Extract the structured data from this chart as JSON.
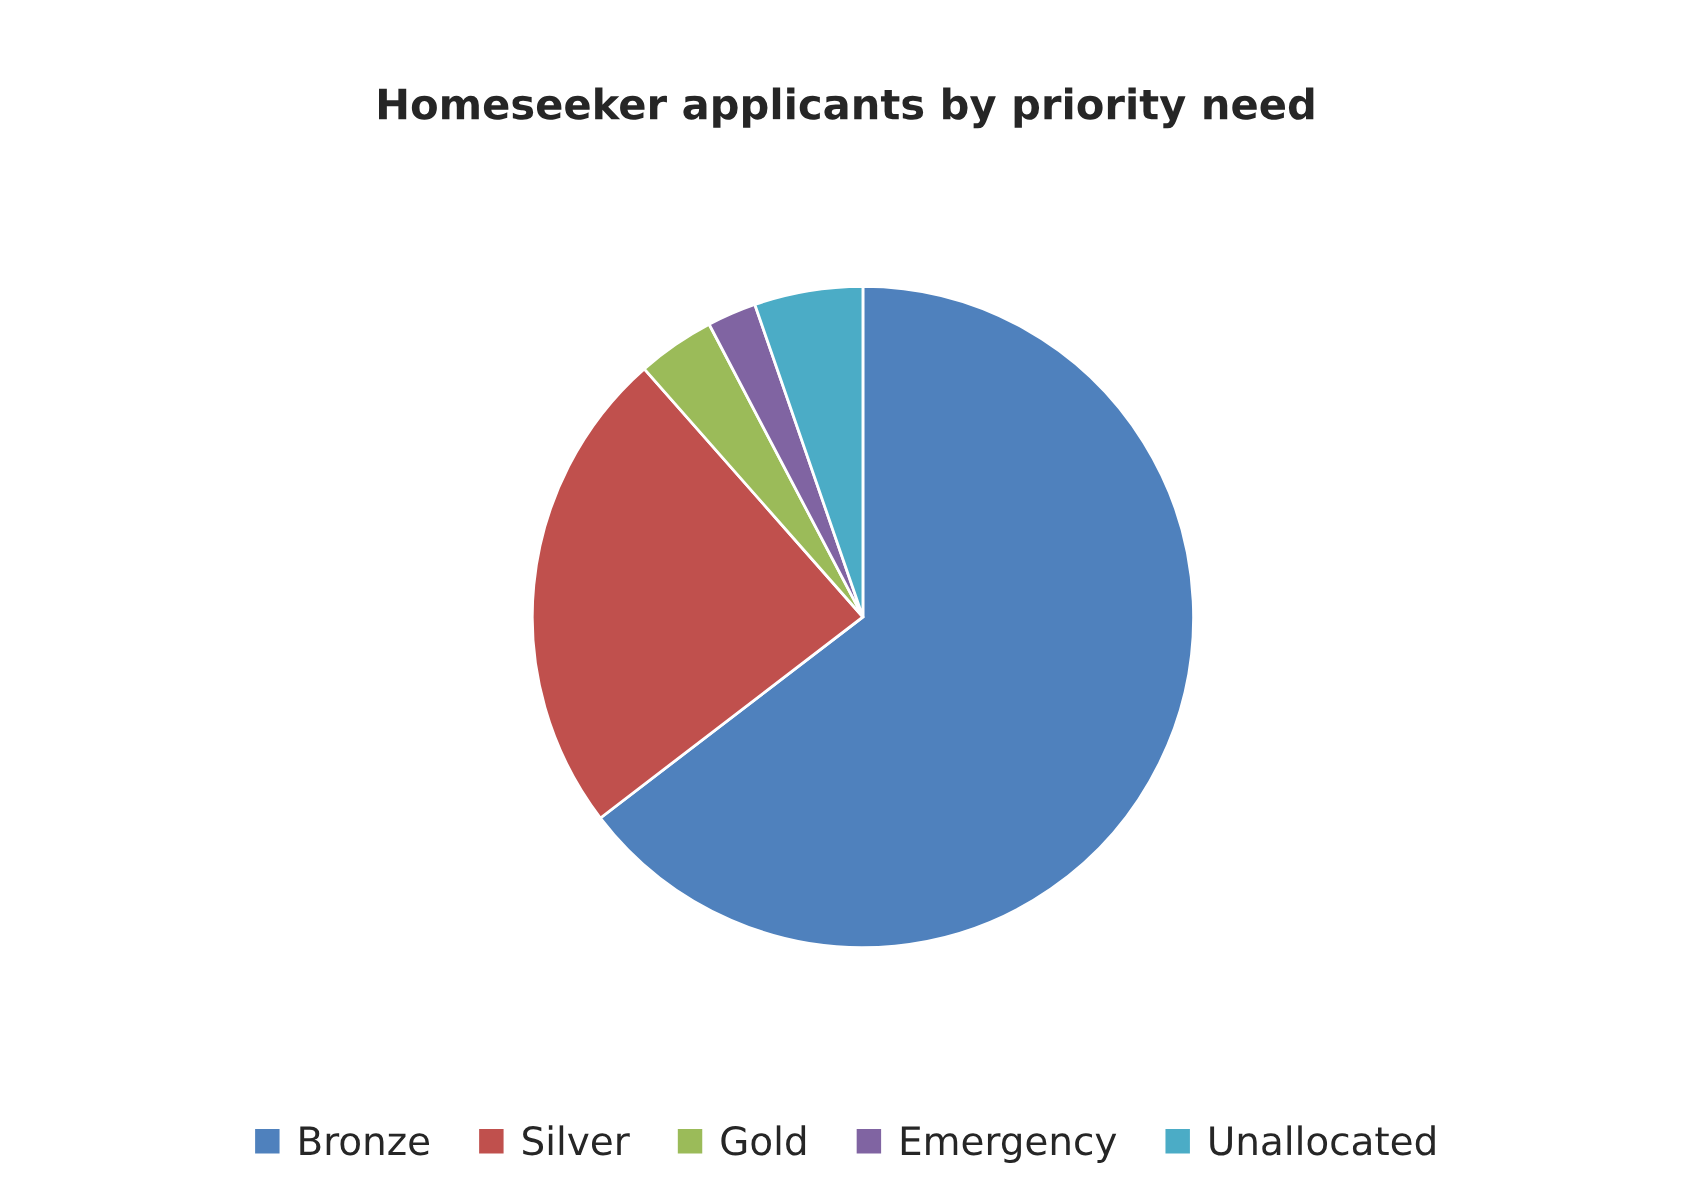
{
  "chart_data": {
    "type": "pie",
    "title": "Homeseeker applicants by priority need",
    "categories": [
      "Bronze",
      "Silver",
      "Gold",
      "Emergency",
      "Unallocated"
    ],
    "values": [
      64.6,
      23.9,
      3.8,
      2.4,
      5.3
    ],
    "colors": [
      "#4f81bd",
      "#c0504d",
      "#9bbb59",
      "#8064a2",
      "#4bacc6"
    ],
    "legend": "bottom"
  }
}
